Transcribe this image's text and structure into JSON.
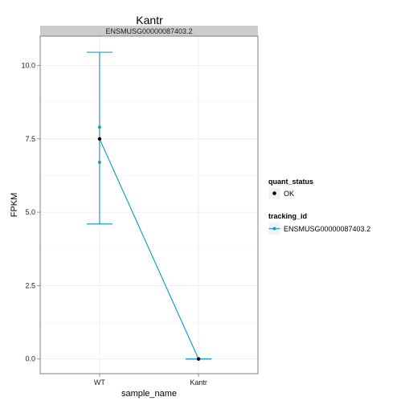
{
  "chart_data": {
    "type": "line",
    "title": "Kantr",
    "facet_label": "ENSMUSG00000087403.2",
    "xlabel": "sample_name",
    "ylabel": "FPKM",
    "categories": [
      "WT",
      "Kantr"
    ],
    "y_ticks": [
      0.0,
      2.5,
      5.0,
      7.5,
      10.0
    ],
    "y_tick_labels": [
      "0.0",
      "2.5",
      "5.0",
      "7.5",
      "10.0"
    ],
    "ylim": [
      -0.5,
      11.0
    ],
    "grid": true,
    "colors": {
      "series": "#1aa0c4",
      "point": "#000000",
      "strip": "#cccccc",
      "grid": "#ebebeb",
      "border": "#7f7f7f"
    },
    "series": [
      {
        "name": "ENSMUSG00000087403.2",
        "values": [
          7.5,
          0.0
        ],
        "error_low": [
          4.6,
          0.0
        ],
        "error_high": [
          10.45,
          0.0
        ]
      }
    ],
    "replicates": [
      {
        "category": "WT",
        "values": [
          7.9,
          6.7
        ]
      }
    ],
    "legend": {
      "placement": "right",
      "quant_status": {
        "title": "quant_status",
        "entries": [
          "OK"
        ]
      },
      "tracking_id": {
        "title": "tracking_id",
        "entries": [
          "ENSMUSG00000087403.2"
        ]
      }
    }
  }
}
